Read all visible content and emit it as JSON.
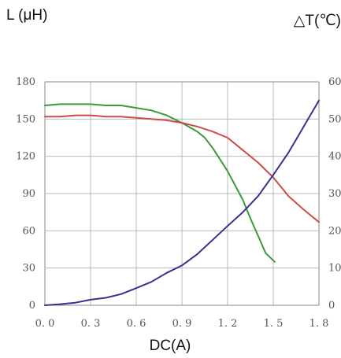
{
  "chart_data": {
    "type": "line",
    "left_axis_title": "L (μH)",
    "right_axis_title": "△T(℃)",
    "xlabel": "DC(A)",
    "xlim": [
      0,
      1.8
    ],
    "ylim_left": [
      0,
      180
    ],
    "ylim_right": [
      0,
      60
    ],
    "x_ticks": [
      "0. 0",
      "0. 3",
      "0. 6",
      "0. 9",
      "1. 2",
      "1. 5",
      "1. 8"
    ],
    "y_ticks_left": [
      "0",
      "30",
      "60",
      "90",
      "120",
      "150",
      "180"
    ],
    "y_ticks_right": [
      "0",
      "10",
      "20",
      "30",
      "40",
      "50",
      "60"
    ],
    "grid": true,
    "series": [
      {
        "axis": "left",
        "color": "#3b9a3b",
        "x": [
          0,
          0.1,
          0.3,
          0.4,
          0.5,
          0.6,
          0.7,
          0.8,
          0.9,
          1.0,
          1.05,
          1.1,
          1.2,
          1.3,
          1.35,
          1.4,
          1.45,
          1.51
        ],
        "y": [
          161,
          162,
          162,
          161,
          161,
          159,
          157,
          153,
          147,
          140,
          135,
          127,
          108,
          85,
          70,
          56,
          42,
          35
        ]
      },
      {
        "axis": "left",
        "color": "#cc4b4b",
        "x": [
          0,
          0.1,
          0.2,
          0.3,
          0.4,
          0.5,
          0.6,
          0.7,
          0.8,
          0.9,
          1.0,
          1.1,
          1.2,
          1.3,
          1.4,
          1.5,
          1.6,
          1.7,
          1.8
        ],
        "y": [
          152,
          152,
          153,
          153,
          152,
          152,
          151,
          150,
          149,
          147,
          144,
          140,
          135,
          125,
          115,
          103,
          88,
          77,
          67
        ]
      },
      {
        "axis": "right",
        "color": "#33338f",
        "x": [
          0,
          0.1,
          0.2,
          0.3,
          0.4,
          0.5,
          0.6,
          0.7,
          0.8,
          0.9,
          1.0,
          1.1,
          1.2,
          1.3,
          1.4,
          1.5,
          1.6,
          1.7,
          1.8
        ],
        "y": [
          0,
          0.3,
          0.7,
          1.5,
          2,
          3,
          4.6,
          6.3,
          8.7,
          10.7,
          13.7,
          17.5,
          21.3,
          25,
          29.3,
          35,
          41,
          48,
          55
        ]
      }
    ]
  }
}
